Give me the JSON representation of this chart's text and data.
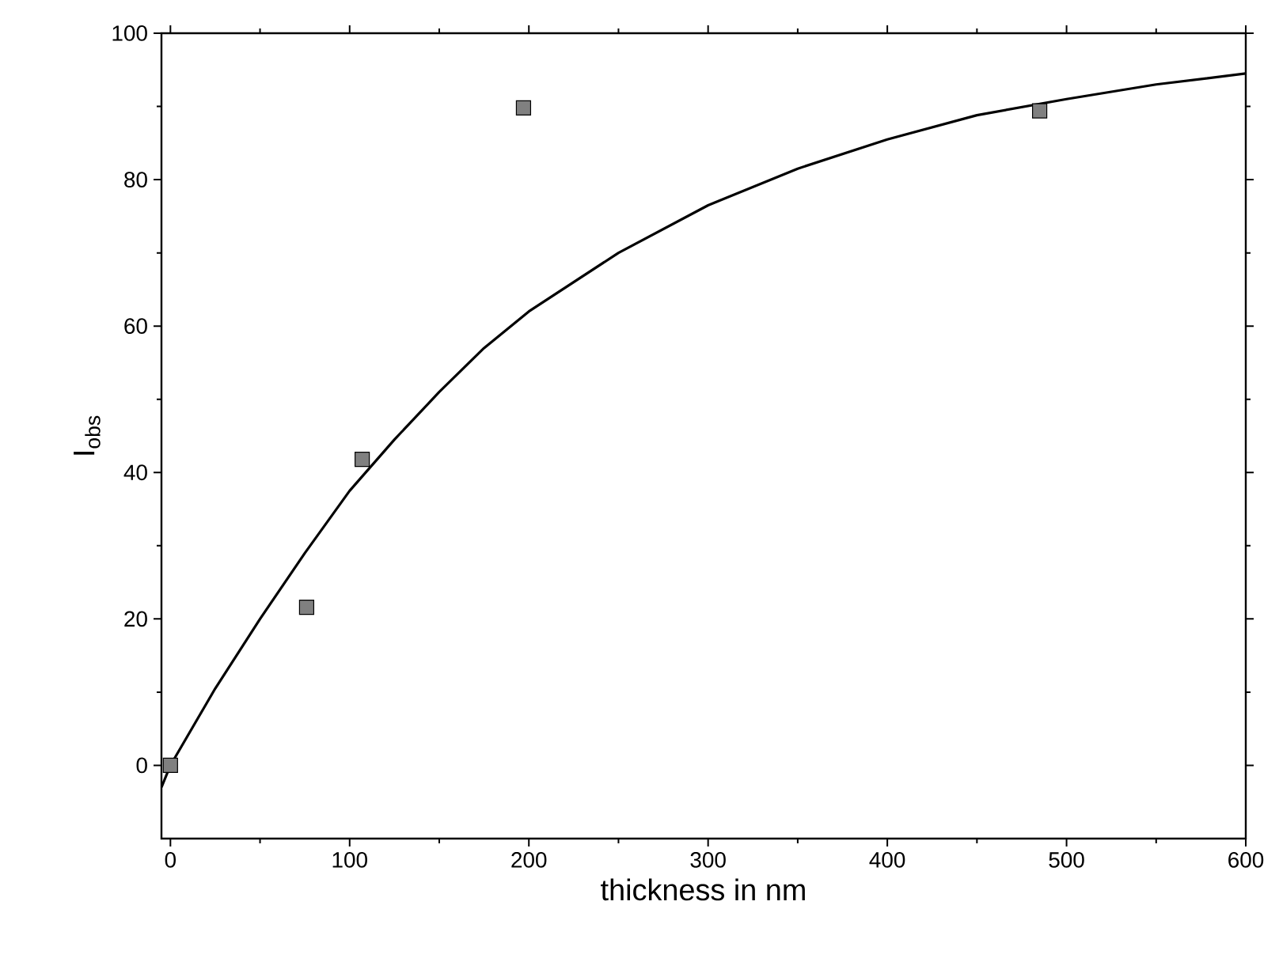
{
  "chart_data": {
    "type": "scatter",
    "xlabel": "thickness in nm",
    "ylabel": "I$_{obs}$",
    "xlim": [
      -5,
      600
    ],
    "ylim": [
      -10,
      100
    ],
    "xticks": [
      0,
      100,
      200,
      300,
      400,
      500,
      600
    ],
    "yticks": [
      0,
      20,
      40,
      60,
      80,
      100
    ],
    "marker": "square",
    "grid": false,
    "series": [
      {
        "color": "#808080",
        "x": [
          0,
          76,
          107,
          197,
          485
        ],
        "values": [
          0,
          21.6,
          41.8,
          89.8,
          89.4
        ]
      },
      {
        "type": "line",
        "color": "#000000",
        "marker": "none",
        "line_style": "solid",
        "x": [
          -5,
          0,
          25,
          50,
          75,
          100,
          125,
          150,
          175,
          200,
          250,
          300,
          350,
          400,
          450,
          500,
          550,
          600
        ],
        "values": [
          -3,
          0,
          10.5,
          20,
          29,
          37.5,
          44.5,
          51,
          57,
          62,
          70,
          76.5,
          81.5,
          85.5,
          88.8,
          91,
          93,
          94.5
        ]
      }
    ]
  }
}
